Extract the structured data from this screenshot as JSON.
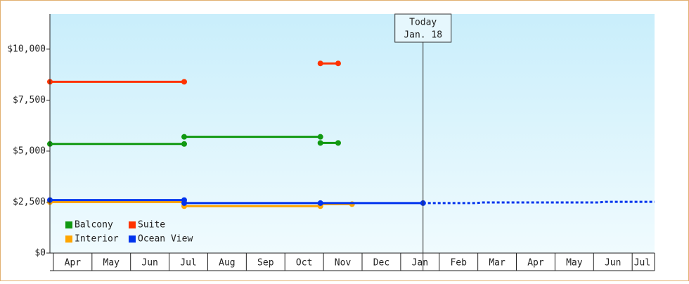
{
  "chart_data": {
    "type": "line",
    "xlim": [
      -0.09,
      15.58
    ],
    "xticks": [
      {
        "value": 0.5,
        "label": "Apr"
      },
      {
        "value": 1.5,
        "label": "May"
      },
      {
        "value": 2.5,
        "label": "Jun"
      },
      {
        "value": 3.5,
        "label": "Jul"
      },
      {
        "value": 4.5,
        "label": "Aug"
      },
      {
        "value": 5.5,
        "label": "Sep"
      },
      {
        "value": 6.5,
        "label": "Oct"
      },
      {
        "value": 7.5,
        "label": "Nov"
      },
      {
        "value": 8.5,
        "label": "Dec"
      },
      {
        "value": 9.5,
        "label": "Jan"
      },
      {
        "value": 10.5,
        "label": "Feb"
      },
      {
        "value": 11.5,
        "label": "Mar"
      },
      {
        "value": 12.5,
        "label": "Apr"
      },
      {
        "value": 13.5,
        "label": "May"
      },
      {
        "value": 14.5,
        "label": "Jun"
      },
      {
        "value": 15.26,
        "label": "Jul"
      }
    ],
    "ylim": [
      0,
      11720
    ],
    "yticks": [
      {
        "value": 0,
        "label": "$0"
      },
      {
        "value": 2500,
        "label": "$2,500"
      },
      {
        "value": 5000,
        "label": "$5,000"
      },
      {
        "value": 7500,
        "label": "$7,500"
      },
      {
        "value": 10000,
        "label": "$10,000"
      }
    ],
    "today": {
      "x": 9.58,
      "label": "Today",
      "date": "Jan. 18"
    },
    "series": [
      {
        "name": "Balcony",
        "color": "#119911",
        "x": [
          -0.09,
          3.39,
          null,
          3.39,
          6.92,
          null,
          6.92,
          7.38
        ],
        "values": [
          5350,
          5350,
          null,
          5700,
          5700,
          null,
          5400,
          5400
        ]
      },
      {
        "name": "Suite",
        "color": "#ff3300",
        "x": [
          -0.09,
          3.39,
          null,
          6.92,
          7.38
        ],
        "values": [
          8400,
          8400,
          null,
          9300,
          9300
        ]
      },
      {
        "name": "Interior",
        "color": "#ffa500",
        "x": [
          -0.09,
          3.39,
          null,
          3.39,
          6.92,
          null,
          6.92,
          7.74
        ],
        "values": [
          2500,
          2500,
          null,
          2300,
          2300,
          null,
          2400,
          2400
        ]
      },
      {
        "name": "Ocean View",
        "color": "#0033ee",
        "x": [
          -0.09,
          3.39,
          null,
          3.39,
          6.92,
          9.58
        ],
        "values": [
          2600,
          2600,
          null,
          2450,
          2450,
          2450
        ],
        "forecast": {
          "x": [
            9.58,
            10.96,
            11.1,
            14.1,
            14.3,
            15.58
          ],
          "values": [
            2450,
            2450,
            2480,
            2480,
            2510,
            2510
          ]
        }
      }
    ]
  }
}
